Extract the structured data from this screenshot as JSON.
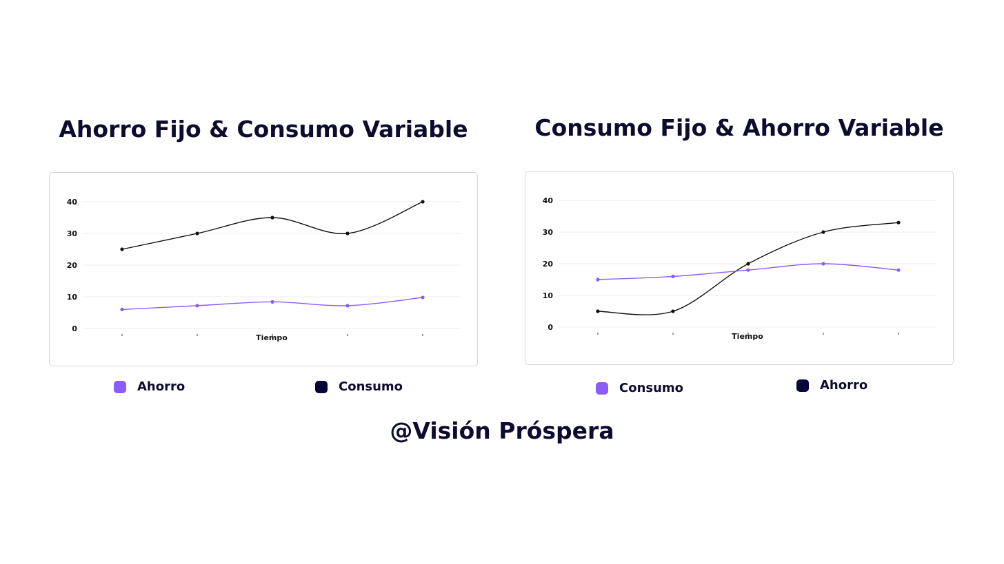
{
  "colors": {
    "purple": "#8b5cf6",
    "navy": "#07073a",
    "line_black": "#111111",
    "grid": "#eeeeee"
  },
  "footer": {
    "handle": "@Visión Próspera"
  },
  "chart_data": [
    {
      "type": "line",
      "title": "Ahorro Fijo & Consumo Variable",
      "xlabel": "Tiempo",
      "ylabel": "",
      "ylim": [
        0,
        40
      ],
      "yticks": [
        "0",
        "10",
        "20",
        "30",
        "40"
      ],
      "x": [
        1,
        2,
        3,
        4,
        5
      ],
      "series": [
        {
          "name": "Consumo",
          "color": "#111111",
          "values": [
            25,
            30,
            35,
            30,
            40
          ]
        },
        {
          "name": "Ahorro",
          "color": "#8b5cf6",
          "values": [
            6,
            7.2,
            8.4,
            7.2,
            9.8
          ]
        }
      ],
      "legend": [
        {
          "label": "Ahorro",
          "color": "#8b5cf6"
        },
        {
          "label": "Consumo",
          "color": "#07073a"
        }
      ]
    },
    {
      "type": "line",
      "title": "Consumo Fijo & Ahorro Variable",
      "xlabel": "Tiempo",
      "ylabel": "",
      "ylim": [
        0,
        40
      ],
      "yticks": [
        "0",
        "10",
        "20",
        "30",
        "40"
      ],
      "x": [
        1,
        2,
        3,
        4,
        5
      ],
      "series": [
        {
          "name": "Ahorro",
          "color": "#111111",
          "values": [
            5,
            5,
            20,
            30,
            33
          ]
        },
        {
          "name": "Consumo",
          "color": "#8b5cf6",
          "values": [
            15,
            16,
            18,
            20,
            18
          ]
        }
      ],
      "legend": [
        {
          "label": "Consumo",
          "color": "#8b5cf6"
        },
        {
          "label": "Ahorro",
          "color": "#07073a"
        }
      ]
    }
  ]
}
